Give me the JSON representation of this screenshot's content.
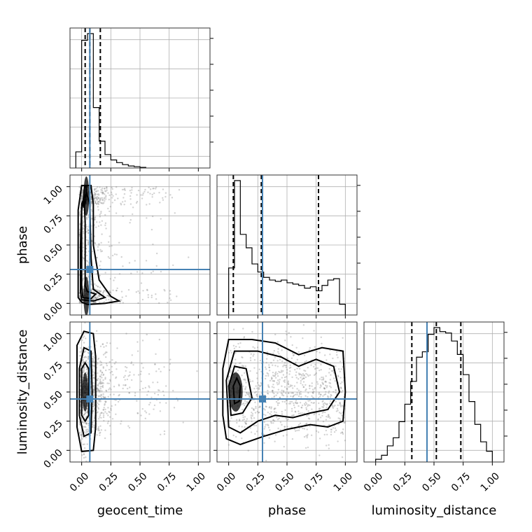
{
  "chart_data": {
    "type": "corner",
    "parameters": [
      "geocent_time",
      "phase",
      "luminosity_distance"
    ],
    "tick_values": [
      0.0,
      0.25,
      0.5,
      0.75,
      1.0
    ],
    "tick_labels": [
      "0.00",
      "0.25",
      "0.50",
      "0.75",
      "1.00"
    ],
    "axis_range": [
      -0.1,
      1.1
    ],
    "grid": true,
    "colors": {
      "truth": "#4682b4",
      "hist": "#000000",
      "scatter": "#808080"
    },
    "truths": {
      "geocent_time": 0.07,
      "phase": 0.29,
      "luminosity_distance": 0.44
    },
    "quantiles": {
      "geocent_time": [
        0.03,
        0.07,
        0.16
      ],
      "phase": [
        0.04,
        0.28,
        0.77
      ],
      "luminosity_distance": [
        0.31,
        0.52,
        0.73
      ]
    },
    "histograms": {
      "geocent_time": {
        "bin_edges": [
          -0.05,
          0.0,
          0.05,
          0.1,
          0.15,
          0.2,
          0.25,
          0.3,
          0.35,
          0.4,
          0.45,
          0.5,
          0.55
        ],
        "counts": [
          0.12,
          0.95,
          1.0,
          0.45,
          0.2,
          0.1,
          0.06,
          0.04,
          0.025,
          0.015,
          0.01,
          0.005
        ]
      },
      "phase": {
        "bin_edges": [
          0.0,
          0.05,
          0.1,
          0.15,
          0.2,
          0.25,
          0.3,
          0.35,
          0.4,
          0.45,
          0.5,
          0.55,
          0.6,
          0.65,
          0.7,
          0.75,
          0.8,
          0.85,
          0.9,
          0.95,
          1.0
        ],
        "counts": [
          0.35,
          1.0,
          0.6,
          0.5,
          0.38,
          0.32,
          0.28,
          0.26,
          0.25,
          0.26,
          0.24,
          0.23,
          0.22,
          0.2,
          0.21,
          0.18,
          0.22,
          0.26,
          0.27,
          0.08
        ]
      },
      "luminosity_distance": {
        "bin_edges": [
          0.0,
          0.05,
          0.1,
          0.15,
          0.2,
          0.25,
          0.3,
          0.35,
          0.4,
          0.45,
          0.5,
          0.55,
          0.6,
          0.65,
          0.7,
          0.75,
          0.8,
          0.85,
          0.9,
          0.95,
          1.0
        ],
        "counts": [
          0.02,
          0.05,
          0.12,
          0.18,
          0.3,
          0.43,
          0.6,
          0.78,
          0.82,
          0.95,
          1.0,
          0.97,
          0.96,
          0.9,
          0.8,
          0.65,
          0.45,
          0.28,
          0.15,
          0.08
        ]
      }
    },
    "panels_2d": [
      {
        "x": "geocent_time",
        "y": "phase",
        "contours": [
          [
            [
              0.0,
              0.01
            ],
            [
              0.05,
              -0.01
            ],
            [
              0.2,
              0.0
            ],
            [
              0.32,
              0.02
            ],
            [
              0.25,
              0.06
            ],
            [
              0.15,
              0.2
            ],
            [
              0.1,
              0.5
            ],
            [
              0.1,
              0.85
            ],
            [
              0.08,
              1.01
            ],
            [
              0.0,
              1.01
            ],
            [
              -0.03,
              0.8
            ],
            [
              -0.03,
              0.3
            ],
            [
              -0.03,
              0.05
            ],
            [
              0.0,
              0.01
            ]
          ],
          [
            [
              0.0,
              0.03
            ],
            [
              0.1,
              0.02
            ],
            [
              0.2,
              0.05
            ],
            [
              0.1,
              0.12
            ],
            [
              0.08,
              0.4
            ],
            [
              0.07,
              0.85
            ],
            [
              0.04,
              0.95
            ],
            [
              0.0,
              0.85
            ],
            [
              -0.01,
              0.5
            ],
            [
              -0.01,
              0.1
            ],
            [
              0.0,
              0.03
            ]
          ],
          [
            [
              0.01,
              0.05
            ],
            [
              0.08,
              0.04
            ],
            [
              0.12,
              0.08
            ],
            [
              0.05,
              0.1
            ],
            [
              0.03,
              0.15
            ],
            [
              0.03,
              0.4
            ],
            [
              0.03,
              0.7
            ],
            [
              0.02,
              0.9
            ],
            [
              0.0,
              0.8
            ],
            [
              0.0,
              0.4
            ],
            [
              0.0,
              0.15
            ],
            [
              0.01,
              0.05
            ]
          ],
          [
            [
              0.02,
              0.82
            ],
            [
              0.035,
              0.88
            ],
            [
              0.04,
              1.0
            ],
            [
              0.025,
              1.0
            ],
            [
              0.015,
              0.9
            ],
            [
              0.02,
              0.82
            ]
          ]
        ],
        "density_cores": [
          [
            0.04,
            0.92
          ],
          [
            0.04,
            0.06
          ]
        ]
      },
      {
        "x": "geocent_time",
        "y": "luminosity_distance",
        "contours": [
          [
            [
              0.0,
              -0.01
            ],
            [
              0.1,
              0.0
            ],
            [
              0.12,
              0.2
            ],
            [
              0.12,
              0.8
            ],
            [
              0.1,
              1.0
            ],
            [
              0.02,
              1.02
            ],
            [
              -0.04,
              0.9
            ],
            [
              -0.04,
              0.2
            ],
            [
              0.0,
              -0.01
            ]
          ],
          [
            [
              0.02,
              0.12
            ],
            [
              0.08,
              0.15
            ],
            [
              0.09,
              0.5
            ],
            [
              0.08,
              0.85
            ],
            [
              0.02,
              0.88
            ],
            [
              -0.02,
              0.7
            ],
            [
              -0.02,
              0.3
            ],
            [
              0.02,
              0.12
            ]
          ],
          [
            [
              0.03,
              0.25
            ],
            [
              0.06,
              0.3
            ],
            [
              0.06,
              0.7
            ],
            [
              0.03,
              0.75
            ],
            [
              0.0,
              0.7
            ],
            [
              0.0,
              0.3
            ],
            [
              0.03,
              0.25
            ]
          ]
        ],
        "density_cores": [
          [
            0.03,
            0.5
          ]
        ]
      },
      {
        "x": "phase",
        "y": "luminosity_distance",
        "contours": [
          [
            [
              -0.02,
              0.1
            ],
            [
              0.1,
              0.05
            ],
            [
              0.3,
              0.12
            ],
            [
              0.5,
              0.18
            ],
            [
              0.7,
              0.22
            ],
            [
              0.85,
              0.2
            ],
            [
              0.98,
              0.25
            ],
            [
              1.0,
              0.5
            ],
            [
              0.98,
              0.85
            ],
            [
              0.8,
              0.88
            ],
            [
              0.6,
              0.82
            ],
            [
              0.4,
              0.92
            ],
            [
              0.2,
              0.95
            ],
            [
              0.0,
              0.95
            ],
            [
              -0.05,
              0.7
            ],
            [
              -0.05,
              0.3
            ],
            [
              -0.02,
              0.1
            ]
          ],
          [
            [
              0.0,
              0.2
            ],
            [
              0.1,
              0.15
            ],
            [
              0.25,
              0.25
            ],
            [
              0.4,
              0.3
            ],
            [
              0.55,
              0.28
            ],
            [
              0.7,
              0.32
            ],
            [
              0.85,
              0.35
            ],
            [
              0.95,
              0.5
            ],
            [
              0.9,
              0.72
            ],
            [
              0.75,
              0.78
            ],
            [
              0.6,
              0.72
            ],
            [
              0.45,
              0.8
            ],
            [
              0.25,
              0.85
            ],
            [
              0.05,
              0.85
            ],
            [
              -0.02,
              0.6
            ],
            [
              0.0,
              0.2
            ]
          ],
          [
            [
              0.02,
              0.3
            ],
            [
              0.12,
              0.32
            ],
            [
              0.2,
              0.45
            ],
            [
              0.15,
              0.7
            ],
            [
              0.05,
              0.72
            ],
            [
              0.0,
              0.55
            ],
            [
              0.02,
              0.3
            ]
          ],
          [
            [
              0.05,
              0.4
            ],
            [
              0.09,
              0.42
            ],
            [
              0.1,
              0.55
            ],
            [
              0.07,
              0.62
            ],
            [
              0.04,
              0.55
            ],
            [
              0.05,
              0.4
            ]
          ]
        ],
        "density_cores": [
          [
            0.06,
            0.5
          ]
        ]
      }
    ]
  }
}
